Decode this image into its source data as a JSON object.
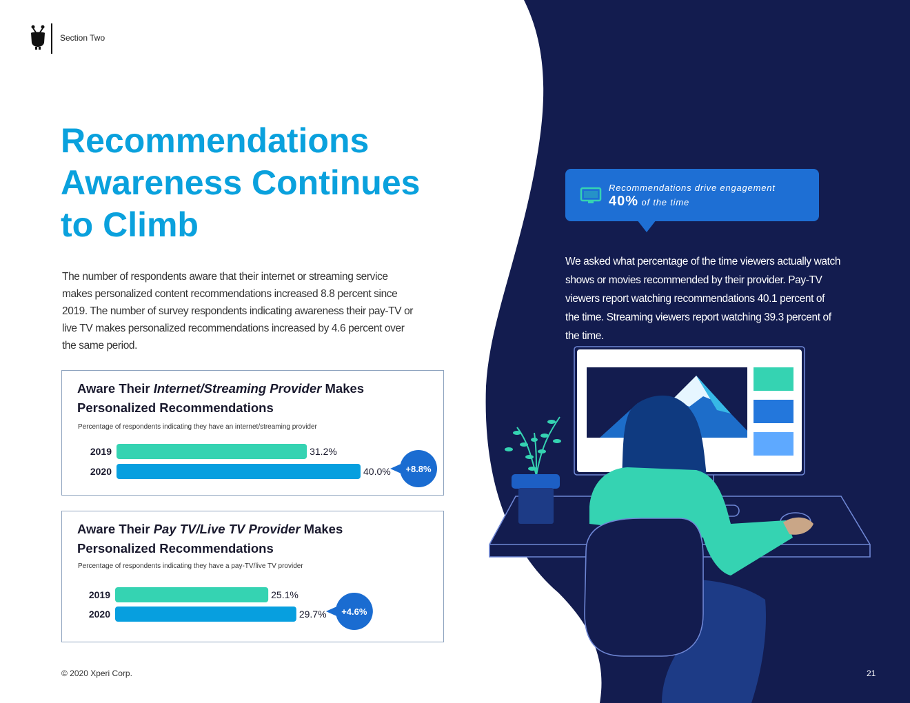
{
  "header": {
    "section_label": "Section Two"
  },
  "headline": {
    "lines": [
      "Recommendations",
      "Awareness Continues",
      "to Climb"
    ]
  },
  "intro_text": "The number of respondents aware that their internet or streaming service makes personalized content recommendations increased 8.8 percent since 2019. The number of survey respondents indicating awareness their pay-TV or live TV makes personalized recommendations increased by 4.6 percent over the same period.",
  "chart_data": [
    {
      "type": "bar",
      "orientation": "horizontal",
      "title_prefix": "Aware Their ",
      "title_emphasis": "Internet/Streaming Provider",
      "title_suffix": " Makes Personalized Recommendations",
      "subtitle": "Percentage of respondents indicating they have an internet/streaming provider",
      "categories": [
        "2019",
        "2020"
      ],
      "values": [
        31.2,
        40.0
      ],
      "value_labels": [
        "31.2%",
        "40.0%"
      ],
      "change_label": "+8.8%",
      "bar_colors": [
        "#35d3b2",
        "#079fdf"
      ]
    },
    {
      "type": "bar",
      "orientation": "horizontal",
      "title_prefix": "Aware Their ",
      "title_emphasis": "Pay TV/Live TV Provider",
      "title_suffix": " Makes Personalized Recommendations",
      "subtitle": "Percentage of respondents indicating they have a pay-TV/live TV provider",
      "categories": [
        "2019",
        "2020"
      ],
      "values": [
        25.1,
        29.7
      ],
      "value_labels": [
        "25.1%",
        "29.7%"
      ],
      "change_label": "+4.6%",
      "bar_colors": [
        "#35d3b2",
        "#079fdf"
      ]
    }
  ],
  "callout": {
    "line1": "Recommendations drive engagement",
    "big_value": "40%",
    "line2_rest": "of the time",
    "icon": "tv-icon"
  },
  "body_right": "We asked what percentage of the time viewers actually watch shows or movies recommended by their provider. Pay-TV viewers report watching recommendations 40.1 percent of the time. Streaming viewers report watching 39.3 percent of the time.",
  "footer": {
    "copyright": "© 2020 Xperi Corp.",
    "page_number": "21"
  },
  "colors": {
    "navy": "#131c4f",
    "headline_blue": "#0aa1dd",
    "callout_blue": "#1e6fd4",
    "teal": "#35d3b2",
    "bar_blue": "#079fdf",
    "badge_blue": "#1a6cd1"
  }
}
